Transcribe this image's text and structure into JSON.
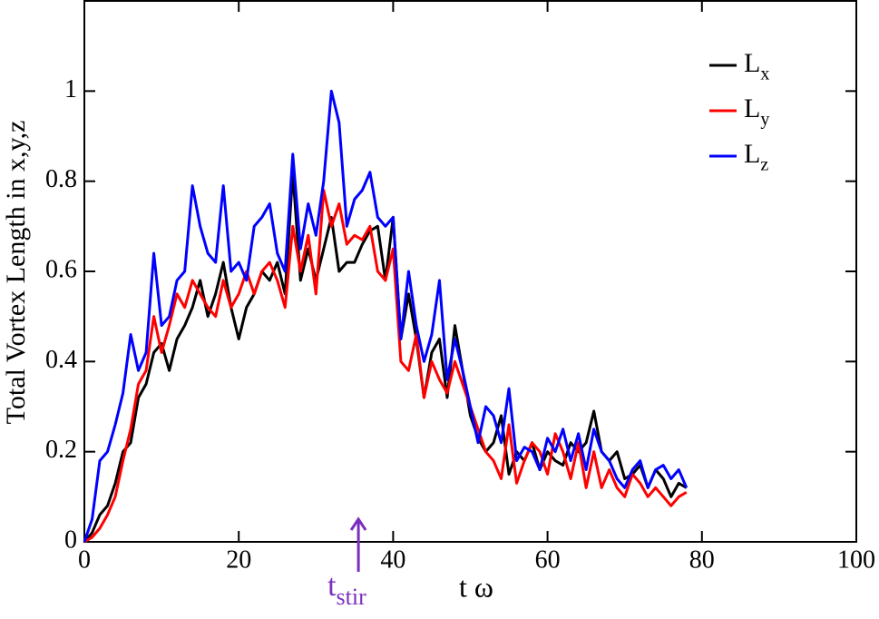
{
  "chart_data": {
    "type": "line",
    "xlabel": "t ω",
    "ylabel": "Total Vortex Length in x,y,z",
    "x": [
      0,
      1,
      2,
      3,
      4,
      5,
      6,
      7,
      8,
      9,
      10,
      11,
      12,
      13,
      14,
      15,
      16,
      17,
      18,
      19,
      20,
      21,
      22,
      23,
      24,
      25,
      26,
      27,
      28,
      29,
      30,
      31,
      32,
      33,
      34,
      35,
      36,
      37,
      38,
      39,
      40,
      41,
      42,
      43,
      44,
      45,
      46,
      47,
      48,
      49,
      50,
      51,
      52,
      53,
      54,
      55,
      56,
      57,
      58,
      59,
      60,
      61,
      62,
      63,
      64,
      65,
      66,
      67,
      68,
      69,
      70,
      71,
      72,
      73,
      74,
      75,
      76,
      77,
      78
    ],
    "series": [
      {
        "name": "Lx",
        "color": "#000000",
        "values": [
          0,
          0.02,
          0.06,
          0.08,
          0.13,
          0.2,
          0.22,
          0.32,
          0.35,
          0.42,
          0.44,
          0.38,
          0.45,
          0.48,
          0.52,
          0.58,
          0.5,
          0.55,
          0.62,
          0.52,
          0.45,
          0.52,
          0.55,
          0.6,
          0.58,
          0.62,
          0.55,
          0.82,
          0.58,
          0.65,
          0.58,
          0.65,
          0.72,
          0.6,
          0.62,
          0.62,
          0.66,
          0.69,
          0.7,
          0.58,
          0.72,
          0.45,
          0.55,
          0.45,
          0.32,
          0.42,
          0.45,
          0.32,
          0.48,
          0.38,
          0.28,
          0.23,
          0.2,
          0.22,
          0.28,
          0.15,
          0.2,
          0.18,
          0.22,
          0.16,
          0.2,
          0.18,
          0.17,
          0.22,
          0.2,
          0.22,
          0.29,
          0.2,
          0.18,
          0.2,
          0.14,
          0.15,
          0.17,
          0.12,
          0.16,
          0.14,
          0.1,
          0.13,
          0.12
        ]
      },
      {
        "name": "Ly",
        "color": "#ff0000",
        "values": [
          0,
          0.01,
          0.03,
          0.06,
          0.1,
          0.18,
          0.25,
          0.35,
          0.38,
          0.5,
          0.42,
          0.48,
          0.55,
          0.52,
          0.58,
          0.55,
          0.52,
          0.5,
          0.58,
          0.52,
          0.55,
          0.6,
          0.55,
          0.6,
          0.62,
          0.58,
          0.52,
          0.7,
          0.6,
          0.68,
          0.55,
          0.78,
          0.7,
          0.75,
          0.66,
          0.68,
          0.67,
          0.7,
          0.6,
          0.58,
          0.65,
          0.4,
          0.38,
          0.46,
          0.32,
          0.4,
          0.36,
          0.33,
          0.4,
          0.35,
          0.3,
          0.25,
          0.2,
          0.18,
          0.14,
          0.26,
          0.13,
          0.18,
          0.22,
          0.2,
          0.15,
          0.24,
          0.2,
          0.14,
          0.22,
          0.12,
          0.2,
          0.12,
          0.16,
          0.12,
          0.1,
          0.15,
          0.13,
          0.1,
          0.12,
          0.1,
          0.08,
          0.1,
          0.11
        ]
      },
      {
        "name": "Lz",
        "color": "#0000ff",
        "values": [
          0,
          0.05,
          0.18,
          0.2,
          0.26,
          0.33,
          0.46,
          0.38,
          0.42,
          0.64,
          0.48,
          0.5,
          0.58,
          0.6,
          0.79,
          0.7,
          0.64,
          0.62,
          0.79,
          0.6,
          0.62,
          0.58,
          0.7,
          0.72,
          0.75,
          0.64,
          0.6,
          0.86,
          0.65,
          0.75,
          0.68,
          0.8,
          1.0,
          0.93,
          0.7,
          0.76,
          0.78,
          0.82,
          0.72,
          0.7,
          0.72,
          0.45,
          0.6,
          0.48,
          0.4,
          0.46,
          0.58,
          0.36,
          0.45,
          0.38,
          0.3,
          0.22,
          0.3,
          0.28,
          0.22,
          0.34,
          0.18,
          0.21,
          0.2,
          0.16,
          0.23,
          0.2,
          0.25,
          0.18,
          0.24,
          0.16,
          0.25,
          0.2,
          0.18,
          0.14,
          0.12,
          0.16,
          0.18,
          0.12,
          0.16,
          0.17,
          0.14,
          0.16,
          0.12
        ]
      }
    ],
    "xlim": [
      0,
      100
    ],
    "xticks": [
      0,
      20,
      40,
      60,
      80,
      100
    ],
    "ylim": [
      0,
      1.2
    ],
    "yticks": [
      0,
      0.2,
      0.4,
      0.6,
      0.8,
      1
    ],
    "legend": "top-right",
    "annotation": {
      "text": "tstir",
      "x": 35.5,
      "color": "#7b2fbe"
    }
  }
}
